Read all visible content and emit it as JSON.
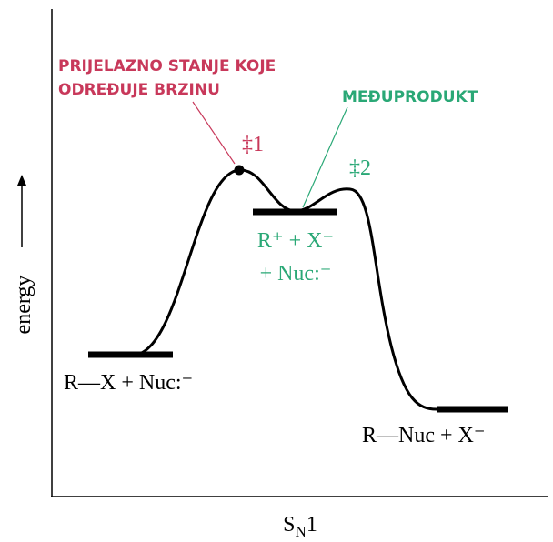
{
  "diagram": {
    "transition_state_label": [
      "PRIJELAZNO STANJE KOJE",
      "ODREĐUJE BRZINU"
    ],
    "intermediate_label": "MEĐUPRODUKT",
    "ts1": "‡1",
    "ts2": "‡2",
    "intermediate_species": [
      "R⁺ + X⁻",
      "+ Nuc:⁻"
    ],
    "reactants": "R—X + Nuc:⁻",
    "products": "R—Nuc + X⁻",
    "y_axis_label": "energy",
    "x_axis_label": {
      "main": "S",
      "sub": "N",
      "tail": "1"
    }
  }
}
